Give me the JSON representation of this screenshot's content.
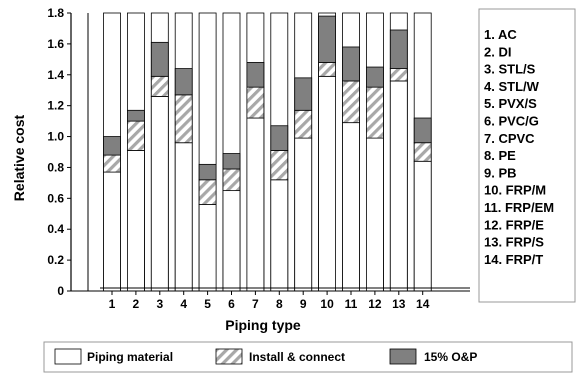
{
  "chart_data": {
    "type": "bar",
    "stacked": true,
    "categories": [
      "1",
      "2",
      "3",
      "4",
      "5",
      "6",
      "7",
      "8",
      "9",
      "10",
      "11",
      "12",
      "13",
      "14"
    ],
    "series": [
      {
        "name": "Piping material",
        "color": "#ffffff",
        "pattern": "none",
        "values": [
          0.77,
          0.91,
          1.26,
          0.96,
          0.56,
          0.65,
          1.12,
          0.72,
          0.99,
          1.39,
          1.09,
          0.99,
          1.36,
          0.84
        ]
      },
      {
        "name": "Install & connect",
        "color": "#aaaaaa",
        "pattern": "diagonal-hatch",
        "values": [
          0.11,
          0.19,
          0.13,
          0.31,
          0.16,
          0.14,
          0.2,
          0.19,
          0.18,
          0.09,
          0.27,
          0.33,
          0.08,
          0.12
        ]
      },
      {
        "name": "15% O&P",
        "color": "#808080",
        "pattern": "none",
        "values": [
          0.12,
          0.07,
          0.22,
          0.17,
          0.1,
          0.1,
          0.16,
          0.16,
          0.21,
          0.3,
          0.22,
          0.13,
          0.25,
          0.16
        ]
      }
    ],
    "xlabel": "Piping type",
    "ylabel": "Relative cost",
    "ylim": [
      0,
      1.8
    ],
    "yticks": [
      "0",
      "0.2",
      "0.4",
      "0.6",
      "0.8",
      "1.0",
      "1.2",
      "1.4",
      "1.6",
      "1.8"
    ],
    "grid": false,
    "legend_position": "bottom",
    "key": [
      {
        "num": "1.",
        "label": "AC"
      },
      {
        "num": "2.",
        "label": "DI"
      },
      {
        "num": "3.",
        "label": "STL/S"
      },
      {
        "num": "4.",
        "label": "STL/W"
      },
      {
        "num": "5.",
        "label": "PVX/S"
      },
      {
        "num": "6.",
        "label": "PVC/G"
      },
      {
        "num": "7.",
        "label": "CPVC"
      },
      {
        "num": "8.",
        "label": "PE"
      },
      {
        "num": "9.",
        "label": "PB"
      },
      {
        "num": "10.",
        "label": "FRP/M"
      },
      {
        "num": "11.",
        "label": "FRP/EM"
      },
      {
        "num": "12.",
        "label": "FRP/E"
      },
      {
        "num": "13.",
        "label": "FRP/S"
      },
      {
        "num": "14.",
        "label": "FRP/T"
      }
    ]
  }
}
